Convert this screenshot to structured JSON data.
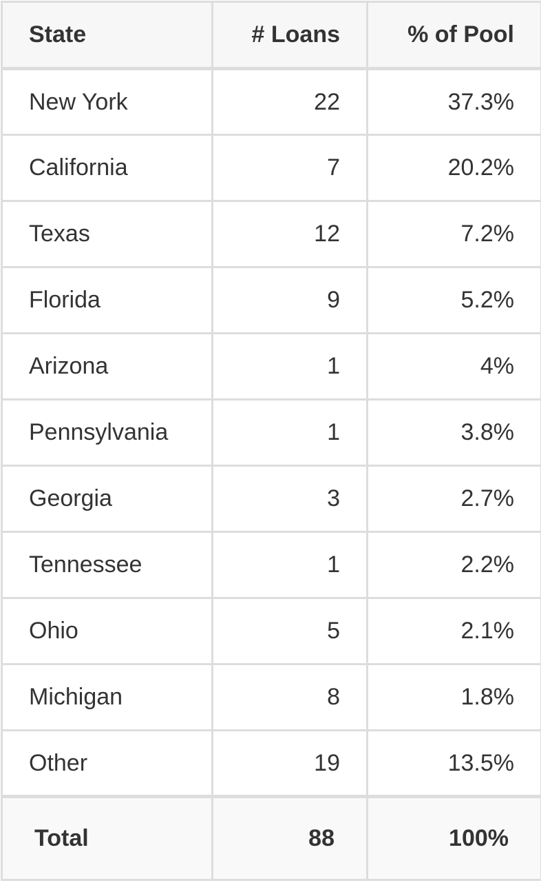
{
  "table": {
    "header": [
      "State",
      "# Loans",
      "% of Pool"
    ],
    "rows": [
      [
        "New York",
        "22",
        "37.3%"
      ],
      [
        "California",
        "7",
        "20.2%"
      ],
      [
        "Texas",
        "12",
        "7.2%"
      ],
      [
        "Florida",
        "9",
        "5.2%"
      ],
      [
        "Arizona",
        "1",
        "4%"
      ],
      [
        "Pennsylvania",
        "1",
        "3.8%"
      ],
      [
        "Georgia",
        "3",
        "2.7%"
      ],
      [
        "Tennessee",
        "1",
        "2.2%"
      ],
      [
        "Ohio",
        "5",
        "2.1%"
      ],
      [
        "Michigan",
        "8",
        "1.8%"
      ],
      [
        "Other",
        "19",
        "13.5%"
      ]
    ],
    "total": [
      "Total",
      "88",
      "100%"
    ]
  }
}
